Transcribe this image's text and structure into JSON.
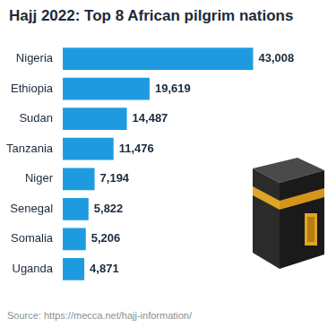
{
  "chart_data": {
    "type": "bar",
    "title": "Hajj 2022: Top 8 African pilgrim nations",
    "categories": [
      "Nigeria",
      "Ethiopia",
      "Sudan",
      "Tanzania",
      "Niger",
      "Senegal",
      "Somalia",
      "Uganda"
    ],
    "values": [
      43008,
      19619,
      14487,
      11476,
      7194,
      5822,
      5206,
      4871
    ],
    "value_labels": [
      "43,008",
      "19,619",
      "14,487",
      "11,476",
      "7,194",
      "5,822",
      "5,206",
      "4,871"
    ],
    "color": "#1e9be0",
    "orientation": "horizontal",
    "data_labels": true,
    "grid": false,
    "tick_labels": "y",
    "source": "Source: https://mecca.net/hajj-information/"
  }
}
